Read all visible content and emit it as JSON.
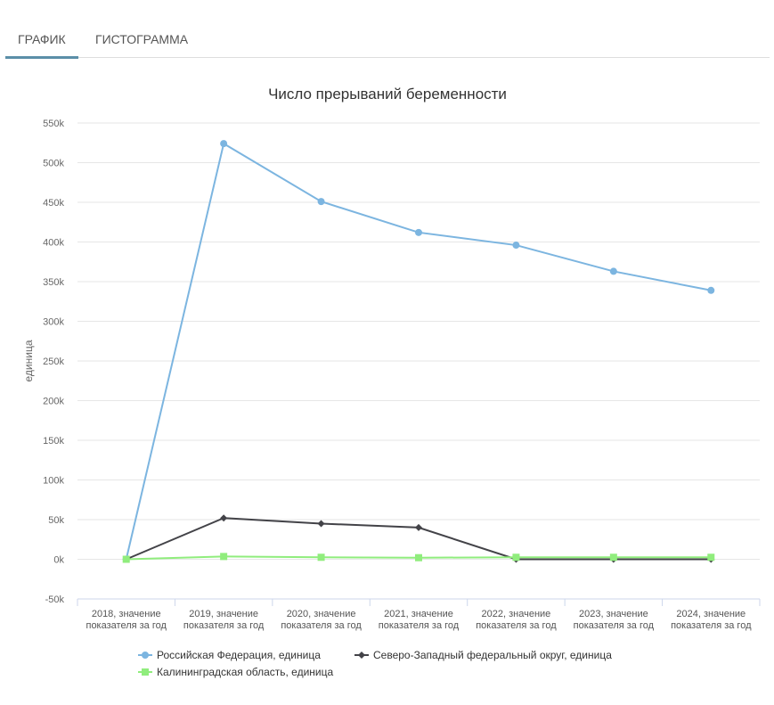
{
  "tabs": [
    {
      "label": "ГРАФИК"
    },
    {
      "label": "ГИСТОГРАММА"
    }
  ],
  "chart_data": {
    "type": "line",
    "title": "Число прерываний беременности",
    "ylabel": "единица",
    "ylim": [
      -50000,
      550000
    ],
    "yticks": [
      -50000,
      0,
      50000,
      100000,
      150000,
      200000,
      250000,
      300000,
      350000,
      400000,
      450000,
      500000,
      550000
    ],
    "ytick_labels": [
      "-50k",
      "0k",
      "50k",
      "100k",
      "150k",
      "200k",
      "250k",
      "300k",
      "350k",
      "400k",
      "450k",
      "500k",
      "550k"
    ],
    "categories": [
      [
        "2018, значение",
        "показателя за год"
      ],
      [
        "2019, значение",
        "показателя за год"
      ],
      [
        "2020, значение",
        "показателя за год"
      ],
      [
        "2021, значение",
        "показателя за год"
      ],
      [
        "2022, значение",
        "показателя за год"
      ],
      [
        "2023, значение",
        "показателя за год"
      ],
      [
        "2024, значение",
        "показателя за год"
      ]
    ],
    "grid": true,
    "legend_position": "bottom",
    "series": [
      {
        "name": "Российская Федерация, единица",
        "color": "#7cb5e0",
        "marker": "circle",
        "values": [
          0,
          524000,
          451000,
          412000,
          396000,
          363000,
          339000
        ]
      },
      {
        "name": "Северо-Западный федеральный округ, единица",
        "color": "#434348",
        "marker": "diamond",
        "values": [
          0,
          52000,
          45000,
          40000,
          0,
          0,
          0
        ]
      },
      {
        "name": "Калининградская область, единица",
        "color": "#90ed7d",
        "marker": "square",
        "values": [
          0,
          3500,
          2500,
          2000,
          2500,
          2500,
          2500
        ]
      }
    ]
  }
}
